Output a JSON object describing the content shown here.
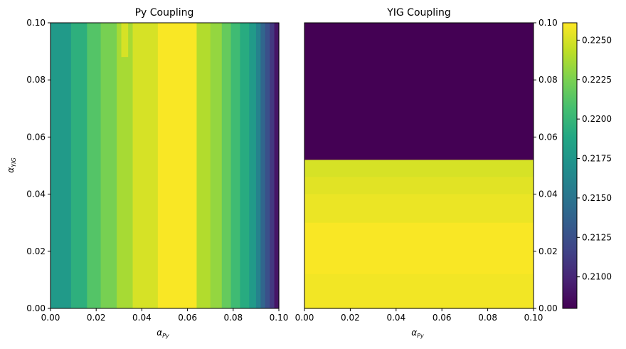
{
  "chart_data": [
    {
      "type": "heatmap",
      "title": "Py Coupling",
      "xlabel": "α",
      "xlabel_sub": "Py",
      "ylabel": "α",
      "ylabel_sub": "YIG",
      "xlim": [
        0.0,
        0.1
      ],
      "ylim": [
        0.0,
        0.1
      ],
      "xticks": [
        "0.00",
        "0.02",
        "0.04",
        "0.06",
        "0.08",
        "0.10"
      ],
      "yticks": [
        "0.00",
        "0.02",
        "0.04",
        "0.06",
        "0.08",
        "0.10"
      ],
      "colormap": "viridis",
      "bands": [
        {
          "x0": 0.0,
          "x1": 0.009,
          "value": 0.2178
        },
        {
          "x0": 0.009,
          "x1": 0.016,
          "value": 0.2195
        },
        {
          "x0": 0.016,
          "x1": 0.022,
          "value": 0.2212
        },
        {
          "x0": 0.022,
          "x1": 0.029,
          "value": 0.2224
        },
        {
          "x0": 0.029,
          "x1": 0.036,
          "value": 0.2237
        },
        {
          "x0": 0.036,
          "x1": 0.047,
          "value": 0.225
        },
        {
          "x0": 0.047,
          "x1": 0.064,
          "value": 0.226
        },
        {
          "x0": 0.064,
          "x1": 0.07,
          "value": 0.224
        },
        {
          "x0": 0.07,
          "x1": 0.075,
          "value": 0.2232
        },
        {
          "x0": 0.075,
          "x1": 0.079,
          "value": 0.2218
        },
        {
          "x0": 0.079,
          "x1": 0.083,
          "value": 0.2204
        },
        {
          "x0": 0.083,
          "x1": 0.087,
          "value": 0.2192
        },
        {
          "x0": 0.087,
          "x1": 0.09,
          "value": 0.2178
        },
        {
          "x0": 0.09,
          "x1": 0.092,
          "value": 0.216
        },
        {
          "x0": 0.092,
          "x1": 0.094,
          "value": 0.214
        },
        {
          "x0": 0.094,
          "x1": 0.096,
          "value": 0.2125
        },
        {
          "x0": 0.096,
          "x1": 0.098,
          "value": 0.211
        },
        {
          "x0": 0.098,
          "x1": 0.1,
          "value": 0.209
        }
      ],
      "patches": [
        {
          "x0": 0.031,
          "x1": 0.034,
          "y0": 0.088,
          "y1": 0.1,
          "value": 0.225
        }
      ]
    },
    {
      "type": "heatmap",
      "title": "YIG Coupling",
      "xlabel": "α",
      "xlabel_sub": "Py",
      "xlim": [
        0.0,
        0.1
      ],
      "ylim": [
        0.0,
        0.1
      ],
      "xticks": [
        "0.00",
        "0.02",
        "0.04",
        "0.06",
        "0.08",
        "0.10"
      ],
      "yticks": [
        "0.00",
        "0.02",
        "0.04",
        "0.06",
        "0.08",
        "0.10"
      ],
      "colormap": "viridis",
      "rows": [
        {
          "y0": 0.052,
          "y1": 0.1,
          "value": 0.208
        },
        {
          "y0": 0.046,
          "y1": 0.052,
          "value": 0.225
        },
        {
          "y0": 0.04,
          "y1": 0.046,
          "value": 0.2253
        },
        {
          "y0": 0.03,
          "y1": 0.04,
          "value": 0.2256
        },
        {
          "y0": 0.012,
          "y1": 0.03,
          "value": 0.226
        },
        {
          "y0": 0.0,
          "y1": 0.012,
          "value": 0.2258
        }
      ]
    }
  ],
  "colorbar": {
    "min": 0.208,
    "max": 0.2261,
    "ticks": [
      "0.2100",
      "0.2125",
      "0.2150",
      "0.2175",
      "0.2200",
      "0.2225",
      "0.2250"
    ],
    "tick_values": [
      0.21,
      0.2125,
      0.215,
      0.2175,
      0.22,
      0.2225,
      0.225
    ]
  }
}
